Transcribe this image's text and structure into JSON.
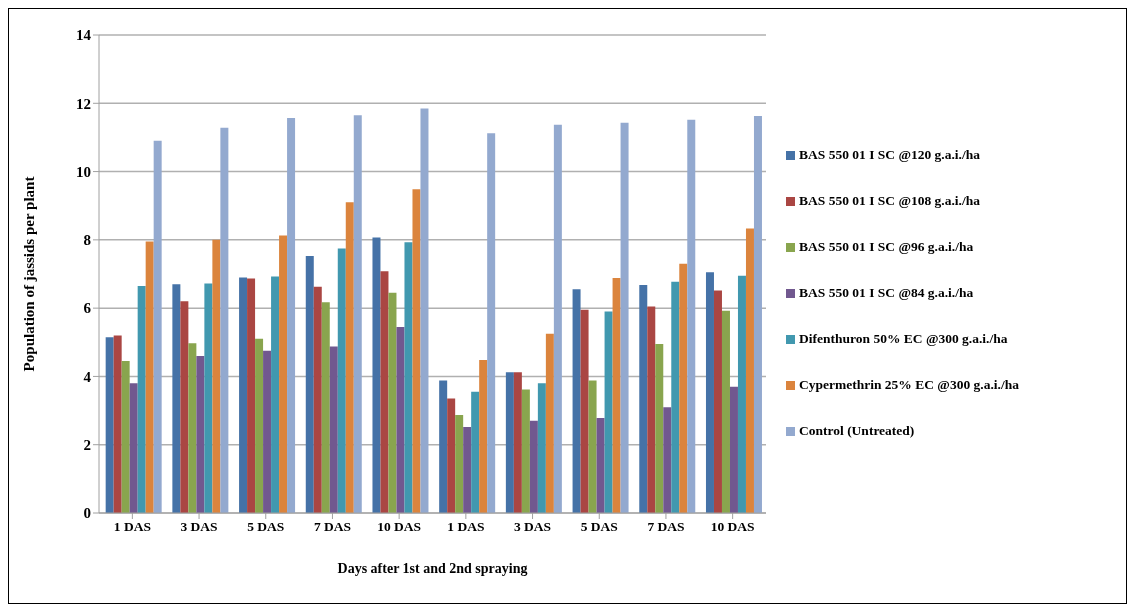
{
  "chart_data": {
    "type": "bar",
    "xlabel": "Days after 1st  and  2nd spraying",
    "ylabel": "Population of  jassids per plant",
    "categories": [
      "1 DAS",
      "3 DAS",
      "5 DAS",
      "7 DAS",
      "10 DAS",
      "1 DAS",
      "3 DAS",
      "5 DAS",
      "7 DAS",
      "10 DAS"
    ],
    "series": [
      {
        "name": "BAS 550 01 I SC @120 g.a.i./ha",
        "color": "#4572a7",
        "values": [
          5.15,
          6.7,
          6.9,
          7.53,
          8.07,
          3.88,
          4.12,
          6.55,
          6.68,
          7.05
        ]
      },
      {
        "name": "BAS 550 01 I SC  @108 g.a.i./ha",
        "color": "#aa4643",
        "values": [
          5.2,
          6.2,
          6.87,
          6.63,
          7.08,
          3.35,
          4.12,
          5.95,
          6.05,
          6.52
        ]
      },
      {
        "name": "BAS 550 01 I SC  @96 g.a.i./ha",
        "color": "#89a54e",
        "values": [
          4.45,
          4.97,
          5.1,
          6.17,
          6.45,
          2.87,
          3.62,
          3.88,
          4.95,
          5.92
        ]
      },
      {
        "name": "BAS 550 01 I SC  @84 g.a.i./ha",
        "color": "#71588f",
        "values": [
          3.8,
          4.6,
          4.75,
          4.88,
          5.45,
          2.52,
          2.7,
          2.78,
          3.1,
          3.7
        ]
      },
      {
        "name": "Difenthuron 50%  EC @300 g.a.i./ha",
        "color": "#4198af",
        "values": [
          6.65,
          6.72,
          6.93,
          7.75,
          7.93,
          3.55,
          3.8,
          5.9,
          6.77,
          6.95
        ]
      },
      {
        "name": "Cypermethrin 25% EC @300 g.a.i./ha",
        "color": "#db843d",
        "values": [
          7.95,
          8.0,
          8.13,
          9.1,
          9.48,
          4.48,
          5.25,
          6.88,
          7.3,
          8.33
        ]
      },
      {
        "name": "Control (Untreated)",
        "color": "#93a9cf",
        "values": [
          10.9,
          11.28,
          11.57,
          11.65,
          11.85,
          11.12,
          11.37,
          11.43,
          11.52,
          11.63
        ]
      }
    ],
    "ylim": [
      0,
      14
    ],
    "yticks": [
      0,
      2,
      4,
      6,
      8,
      10,
      12,
      14
    ],
    "grid": "y",
    "legend": "right"
  }
}
